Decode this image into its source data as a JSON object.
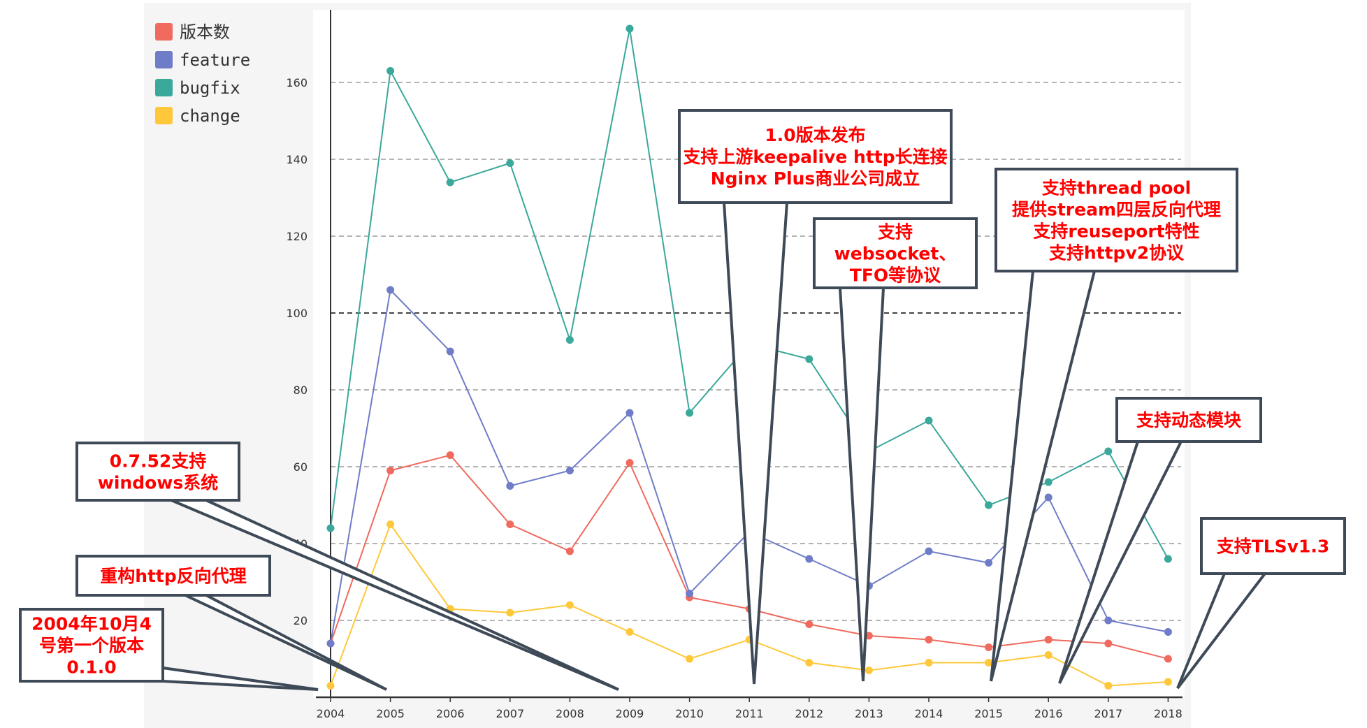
{
  "chart_data": {
    "type": "line",
    "categories": [
      "2004",
      "2005",
      "2006",
      "2007",
      "2008",
      "2009",
      "2010",
      "2011",
      "2012",
      "2013",
      "2014",
      "2015",
      "2016",
      "2017",
      "2018"
    ],
    "ylim": [
      0,
      180
    ],
    "yticks": [
      20,
      40,
      60,
      80,
      100,
      120,
      140,
      160
    ],
    "grid": true,
    "legend": "top-left",
    "series": [
      {
        "name": "版本数",
        "color": "#f06a5e",
        "values": [
          14,
          59,
          63,
          45,
          38,
          61,
          26,
          23,
          19,
          16,
          15,
          13,
          15,
          14,
          10
        ]
      },
      {
        "name": "feature",
        "color": "#6f7cc8",
        "values": [
          14,
          106,
          90,
          55,
          59,
          74,
          27,
          43,
          36,
          29,
          38,
          35,
          52,
          20,
          17
        ]
      },
      {
        "name": "bugfix",
        "color": "#3aa89a",
        "values": [
          44,
          163,
          134,
          139,
          93,
          174,
          74,
          92,
          88,
          64,
          72,
          50,
          56,
          64,
          36
        ]
      },
      {
        "name": "change",
        "color": "#ffc83a",
        "values": [
          3,
          45,
          23,
          22,
          24,
          17,
          10,
          15,
          9,
          7,
          9,
          9,
          11,
          3,
          4
        ]
      }
    ],
    "annotations": [
      {
        "target": "2004",
        "lines": [
          "2004年10月4",
          "号第一个版本",
          "0.1.0"
        ]
      },
      {
        "target": "2005",
        "lines": [
          "重构http反向代理"
        ]
      },
      {
        "target": "2009",
        "lines": [
          "0.7.52支持",
          "windows系统"
        ]
      },
      {
        "target": "2011",
        "lines": [
          "1.0版本发布",
          "支持上游keepalive http长连接",
          "Nginx Plus商业公司成立"
        ]
      },
      {
        "target": "2013",
        "lines": [
          "支持",
          "websocket、",
          "TFO等协议"
        ]
      },
      {
        "target": "2015",
        "lines": [
          "支持thread pool",
          "提供stream四层反向代理",
          "支持reuseport特性",
          "支持httpv2协议"
        ]
      },
      {
        "target": "2016",
        "lines": [
          "支持动态模块"
        ]
      },
      {
        "target": "2018",
        "lines": [
          "支持TLSv1.3"
        ]
      }
    ]
  }
}
